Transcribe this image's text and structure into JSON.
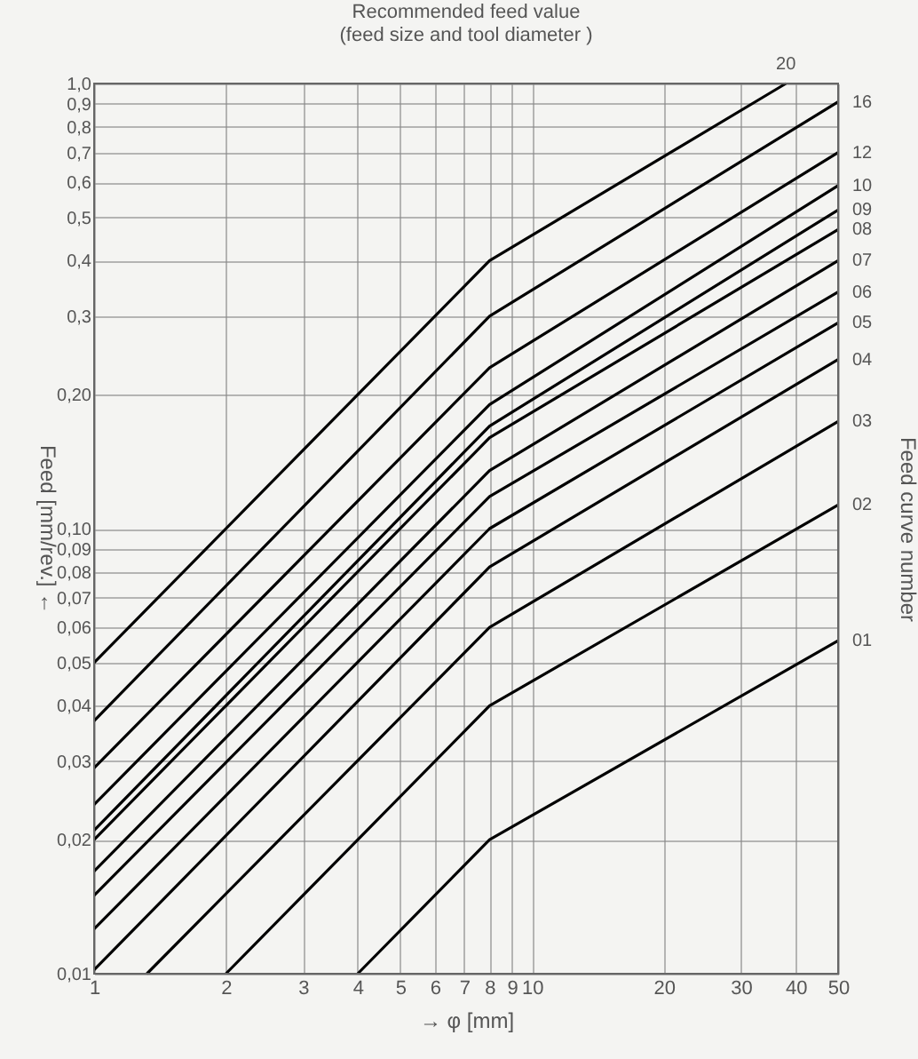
{
  "chart_data": {
    "type": "line",
    "title": [
      "Recommended feed value",
      "(feed size and tool diameter )"
    ],
    "xlabel": "→ φ [mm]",
    "ylabel": "Feed [mm/rev.] ←",
    "y2label": "Feed curve number",
    "log": "xy",
    "grid": true,
    "legend": false,
    "marker": "none",
    "line_style": "solid",
    "xlim": [
      1,
      50
    ],
    "ylim": [
      0.01,
      1.0
    ],
    "xticks": [
      1,
      2,
      3,
      4,
      5,
      6,
      7,
      8,
      9,
      10,
      20,
      30,
      40,
      50
    ],
    "yticks": [
      {
        "value": 1.0,
        "label": "1,0"
      },
      {
        "value": 0.9,
        "label": "0,9"
      },
      {
        "value": 0.8,
        "label": "0,8"
      },
      {
        "value": 0.7,
        "label": "0,7"
      },
      {
        "value": 0.6,
        "label": "0,6"
      },
      {
        "value": 0.5,
        "label": "0,5"
      },
      {
        "value": 0.4,
        "label": "0,4"
      },
      {
        "value": 0.3,
        "label": "0,3"
      },
      {
        "value": 0.2,
        "label": "0,20"
      },
      {
        "value": 0.1,
        "label": "0,10"
      },
      {
        "value": 0.09,
        "label": "0,09"
      },
      {
        "value": 0.08,
        "label": "0,08"
      },
      {
        "value": 0.07,
        "label": "0,07"
      },
      {
        "value": 0.06,
        "label": "0,06"
      },
      {
        "value": 0.05,
        "label": "0,05"
      },
      {
        "value": 0.04,
        "label": "0,04"
      },
      {
        "value": 0.03,
        "label": "0,03"
      },
      {
        "value": 0.02,
        "label": "0,02"
      },
      {
        "value": 0.01,
        "label": "0,01"
      }
    ],
    "series": [
      {
        "name": "20",
        "color": "#000000",
        "x": [
          1,
          8,
          38
        ],
        "values": [
          0.05,
          0.4,
          1.0
        ]
      },
      {
        "name": "16",
        "color": "#000000",
        "x": [
          1,
          8,
          50
        ],
        "values": [
          0.037,
          0.3,
          0.91
        ]
      },
      {
        "name": "12",
        "color": "#000000",
        "x": [
          1,
          8,
          50
        ],
        "values": [
          0.029,
          0.23,
          0.7
        ]
      },
      {
        "name": "10",
        "color": "#000000",
        "x": [
          1,
          8,
          50
        ],
        "values": [
          0.024,
          0.19,
          0.59
        ]
      },
      {
        "name": "09",
        "color": "#000000",
        "x": [
          1,
          8,
          50
        ],
        "values": [
          0.021,
          0.17,
          0.52
        ]
      },
      {
        "name": "08",
        "color": "#000000",
        "x": [
          1,
          8,
          50
        ],
        "values": [
          0.02,
          0.16,
          0.47
        ]
      },
      {
        "name": "07",
        "color": "#000000",
        "x": [
          1,
          8,
          50
        ],
        "values": [
          0.017,
          0.135,
          0.4
        ]
      },
      {
        "name": "06",
        "color": "#000000",
        "x": [
          1,
          8,
          50
        ],
        "values": [
          0.015,
          0.118,
          0.34
        ]
      },
      {
        "name": "05",
        "color": "#000000",
        "x": [
          1,
          8,
          50
        ],
        "values": [
          0.0126,
          0.1,
          0.29
        ]
      },
      {
        "name": "04",
        "color": "#000000",
        "x": [
          1,
          8,
          50
        ],
        "values": [
          0.0102,
          0.082,
          0.24
        ]
      },
      {
        "name": "03",
        "color": "#000000",
        "x": [
          1.32,
          8,
          50
        ],
        "values": [
          0.01,
          0.06,
          0.174
        ]
      },
      {
        "name": "02",
        "color": "#000000",
        "x": [
          2,
          8,
          50
        ],
        "values": [
          0.01,
          0.04,
          0.113
        ]
      },
      {
        "name": "01",
        "color": "#000000",
        "x": [
          4,
          8,
          50
        ],
        "values": [
          0.01,
          0.02,
          0.056
        ]
      }
    ]
  }
}
